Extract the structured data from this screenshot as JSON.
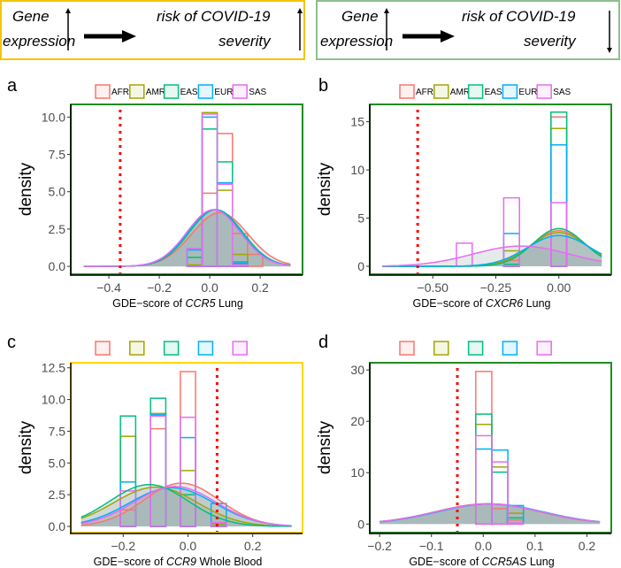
{
  "header": {
    "left": {
      "gene": "Gene",
      "expression": "expression",
      "risk": "risk of COVID-19",
      "severity": "severity",
      "gene_direction": "up",
      "risk_direction": "up",
      "border_color": "#F2C500"
    },
    "right": {
      "gene": "Gene",
      "expression": "expression",
      "risk": "risk of COVID-19",
      "severity": "severity",
      "gene_direction": "up",
      "risk_direction": "down",
      "border_color": "#8DBF8D"
    }
  },
  "legend": {
    "groups": [
      "AFR",
      "AMR",
      "EAS",
      "EUR",
      "SAS"
    ],
    "colors": [
      "#F8766D",
      "#A3A500",
      "#00BF7D",
      "#00B0F6",
      "#E76BF3"
    ]
  },
  "chart_data": [
    {
      "panel": "a",
      "type": "histogram+density",
      "xlabel_prefix": "GDE−score of ",
      "xlabel_gene": "CCR5",
      "xlabel_suffix": " Lung",
      "ylabel": "density",
      "frame_color": "#228B22",
      "xlim": [
        -0.551,
        0.368
      ],
      "ylim": [
        -0.53,
        10.85
      ],
      "xticks": [
        -0.4,
        -0.2,
        0.0,
        0.2
      ],
      "xtick_labels": [
        "−0.4",
        "−0.2",
        "0.0",
        "0.2"
      ],
      "yticks": [
        0,
        2.5,
        5,
        7.5,
        10
      ],
      "ytick_labels": [
        "0.0",
        "2.5",
        "5.0",
        "7.5",
        "10.0"
      ],
      "threshold": -0.355,
      "bin_width": 0.06,
      "bin_centers": [
        -0.06,
        0.0,
        0.06,
        0.12,
        0.18
      ],
      "series": [
        {
          "name": "AFR",
          "hist": [
            0.05,
            4.9,
            8.9,
            2.2,
            0.8
          ],
          "mean": 0.04,
          "sd": 0.111
        },
        {
          "name": "AMR",
          "hist": [
            0.1,
            10.3,
            5.1,
            0.8,
            0
          ],
          "mean": 0.02,
          "sd": 0.105
        },
        {
          "name": "EAS",
          "hist": [
            0.6,
            9.2,
            7.0,
            0.2,
            0
          ],
          "mean": 0.025,
          "sd": 0.105
        },
        {
          "name": "EUR",
          "hist": [
            1.1,
            10.0,
            5.6,
            0.3,
            0
          ],
          "mean": 0.02,
          "sd": 0.105
        },
        {
          "name": "SAS",
          "hist": [
            1.2,
            10.2,
            5.5,
            0.1,
            0
          ],
          "mean": 0.015,
          "sd": 0.105
        }
      ],
      "curve_range": [
        -0.5,
        0.32
      ]
    },
    {
      "panel": "b",
      "type": "histogram+density",
      "xlabel_prefix": "GDE−score of ",
      "xlabel_gene": "CXCR6",
      "xlabel_suffix": " Lung",
      "ylabel": "density",
      "frame_color": "#228B22",
      "xlim": [
        -0.75,
        0.208
      ],
      "ylim": [
        -0.83,
        16.8
      ],
      "xticks": [
        -0.5,
        -0.25,
        0.0
      ],
      "xtick_labels": [
        "−0.50",
        "−0.25",
        "0.00"
      ],
      "yticks": [
        0,
        5,
        10,
        15
      ],
      "ytick_labels": [
        "0",
        "5",
        "10",
        "15"
      ],
      "threshold": -0.56,
      "bin_width": 0.0625,
      "bin_centers": [
        -0.375,
        -0.1875,
        0.0
      ],
      "series": [
        {
          "name": "AFR",
          "hist": [
            0,
            0.6,
            15.5
          ],
          "mean": 0.0,
          "sd": 0.108
        },
        {
          "name": "AMR",
          "hist": [
            0,
            1.6,
            14.3
          ],
          "mean": 0.0,
          "sd": 0.114
        },
        {
          "name": "EAS",
          "hist": [
            0,
            0.2,
            16.0
          ],
          "mean": 0.0,
          "sd": 0.102
        },
        {
          "name": "EUR",
          "hist": [
            0,
            3.4,
            12.6
          ],
          "mean": 0.0,
          "sd": 0.125
        },
        {
          "name": "SAS",
          "hist": [
            2.4,
            7.1,
            6.6
          ],
          "mean": -0.15,
          "sd": 0.19
        }
      ],
      "curve_range": [
        -0.7,
        0.17
      ]
    },
    {
      "panel": "c",
      "type": "histogram+density",
      "xlabel_prefix": "GDE−score of ",
      "xlabel_gene": "CCR9",
      "xlabel_suffix": " Whole Blood",
      "ylabel": "density",
      "frame_color": "#FFD700",
      "xlim": [
        -0.362,
        0.354
      ],
      "ylim": [
        -0.49,
        12.9
      ],
      "xticks": [
        -0.2,
        0.0,
        0.2
      ],
      "xtick_labels": [
        "−0.2",
        "0.0",
        "0.2"
      ],
      "yticks": [
        0,
        2.5,
        5,
        7.5,
        10,
        12.5
      ],
      "ytick_labels": [
        "0.0",
        "2.5",
        "5.0",
        "7.5",
        "10.0",
        "12.5"
      ],
      "threshold": 0.09,
      "bin_width": 0.047,
      "bin_centers": [
        -0.185,
        -0.092,
        0.0,
        0.095
      ],
      "series": [
        {
          "name": "AFR",
          "hist": [
            1.3,
            7.7,
            12.2,
            0.05
          ],
          "mean": -0.02,
          "sd": 0.117
        },
        {
          "name": "AMR",
          "hist": [
            7.1,
            8.9,
            4.4,
            0.2
          ],
          "mean": -0.1,
          "sd": 0.129
        },
        {
          "name": "EAS",
          "hist": [
            8.7,
            10.1,
            2.5,
            0.05
          ],
          "mean": -0.12,
          "sd": 0.121
        },
        {
          "name": "EUR",
          "hist": [
            3.5,
            8.8,
            7.0,
            1.8
          ],
          "mean": -0.05,
          "sd": 0.131
        },
        {
          "name": "SAS",
          "hist": [
            2.8,
            8.7,
            8.6,
            0.3
          ],
          "mean": -0.04,
          "sd": 0.127
        }
      ],
      "curve_range": [
        -0.33,
        0.32
      ]
    },
    {
      "panel": "d",
      "type": "histogram+density",
      "xlabel_prefix": "GDE−score of ",
      "xlabel_gene": "CCR5AS",
      "xlabel_suffix": " Lung",
      "ylabel": "density",
      "frame_color": "#228B22",
      "xlim": [
        -0.219,
        0.247
      ],
      "ylim": [
        -1.67,
        31.4
      ],
      "xticks": [
        -0.2,
        -0.1,
        0.0,
        0.1,
        0.2
      ],
      "xtick_labels": [
        "−0.2",
        "−0.1",
        "0.0",
        "0.1",
        "0.2"
      ],
      "yticks": [
        0,
        10,
        20,
        30
      ],
      "ytick_labels": [
        "0",
        "10",
        "20",
        "30"
      ],
      "threshold": -0.05,
      "bin_width": 0.031,
      "bin_centers": [
        0.001,
        0.032,
        0.062
      ],
      "series": [
        {
          "name": "AFR",
          "hist": [
            29.7,
            3.0,
            0.8
          ],
          "mean": 0.008,
          "sd": 0.101
        },
        {
          "name": "AMR",
          "hist": [
            19.4,
            11.1,
            2.1
          ],
          "mean": 0.01,
          "sd": 0.102
        },
        {
          "name": "EAS",
          "hist": [
            21.4,
            10.1,
            1.2
          ],
          "mean": 0.01,
          "sd": 0.102
        },
        {
          "name": "EUR",
          "hist": [
            14.6,
            14.4,
            3.6
          ],
          "mean": 0.014,
          "sd": 0.102
        },
        {
          "name": "SAS",
          "hist": [
            17.2,
            12.1,
            0.2
          ],
          "mean": 0.01,
          "sd": 0.102
        }
      ],
      "curve_range": [
        -0.2,
        0.225
      ]
    }
  ]
}
